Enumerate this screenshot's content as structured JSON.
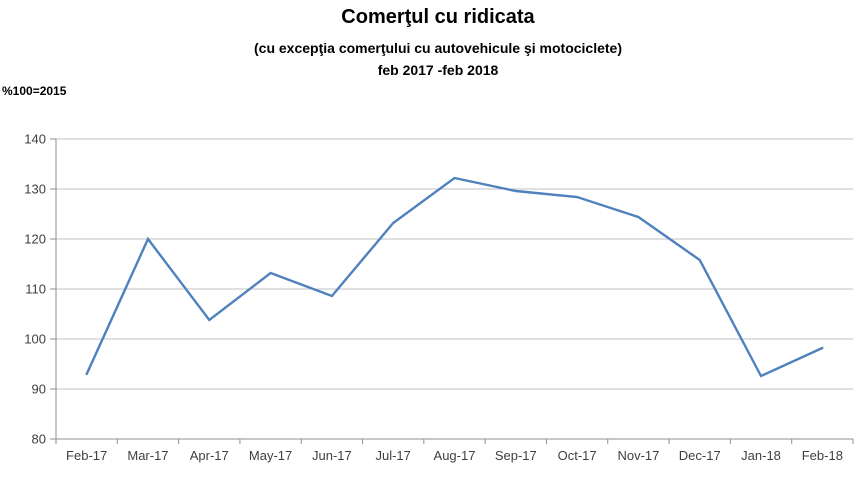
{
  "header": {
    "title": "Comerţul cu ridicata",
    "subtitle1": "(cu excepţia comerţului cu autovehicule şi motociclete)",
    "subtitle2": "feb 2017 -feb 2018",
    "unit_label": "%100=2015"
  },
  "colors": {
    "line": "#4F81BD",
    "gridline": "#c2c2c2",
    "axis": "#8f8f8f",
    "tick_text": "#3f3f3f",
    "background": "#ffffff",
    "title_text": "#000000"
  },
  "chart_data": {
    "type": "line",
    "title": "Comerţul cu ridicata",
    "subtitle": "(cu excepţia comerţului cu autovehicule şi motociclete) feb 2017 -feb 2018",
    "ylabel": "%100=2015",
    "xlabel": "",
    "categories": [
      "Feb-17",
      "Mar-17",
      "Apr-17",
      "May-17",
      "Jun-17",
      "Jul-17",
      "Aug-17",
      "Sep-17",
      "Oct-17",
      "Nov-17",
      "Dec-17",
      "Jan-18",
      "Feb-18"
    ],
    "values": [
      93.0,
      120.0,
      103.8,
      113.2,
      108.6,
      123.2,
      132.2,
      129.6,
      128.4,
      124.4,
      115.8,
      92.6,
      98.2
    ],
    "ylim": [
      80,
      140
    ],
    "yticks": [
      80,
      90,
      100,
      110,
      120,
      130,
      140
    ],
    "grid": true,
    "legend": false,
    "marker": "none"
  }
}
